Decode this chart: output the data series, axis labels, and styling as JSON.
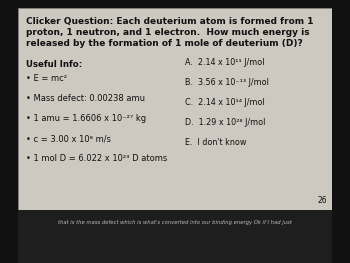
{
  "bg_color": "#111111",
  "slide_bg": "#cdc8c0",
  "title_line1": "Clicker Question: Each deuterium atom is formed from 1",
  "title_line2": "proton, 1 neutron, and 1 electron.  How much energy is",
  "title_line3": "released by the formation of 1 mole of deuterium (D)?",
  "useful_info_label": "Useful Info:",
  "bullets": [
    "E = mc²",
    "Mass defect: 0.00238 amu",
    "1 amu = 1.6606 x 10⁻²⁷ kg",
    "c = 3.00 x 10⁸ m/s",
    "1 mol D = 6.022 x 10²³ D atoms"
  ],
  "answers": [
    "A.  2.14 x 10¹¹ J/mol",
    "B.  3.56 x 10⁻¹³ J/mol",
    "C.  2.14 x 10¹⁴ J/mol",
    "D.  1.29 x 10²⁸ J/mol",
    "E.  I don't know"
  ],
  "slide_number": "26",
  "bottom_text": "that is the mass defect which is what's converted into our binding energy Ok if I had just",
  "text_color": "#111111",
  "bottom_bg": "#1e1e1e",
  "bottom_text_color": "#bbbbbb"
}
